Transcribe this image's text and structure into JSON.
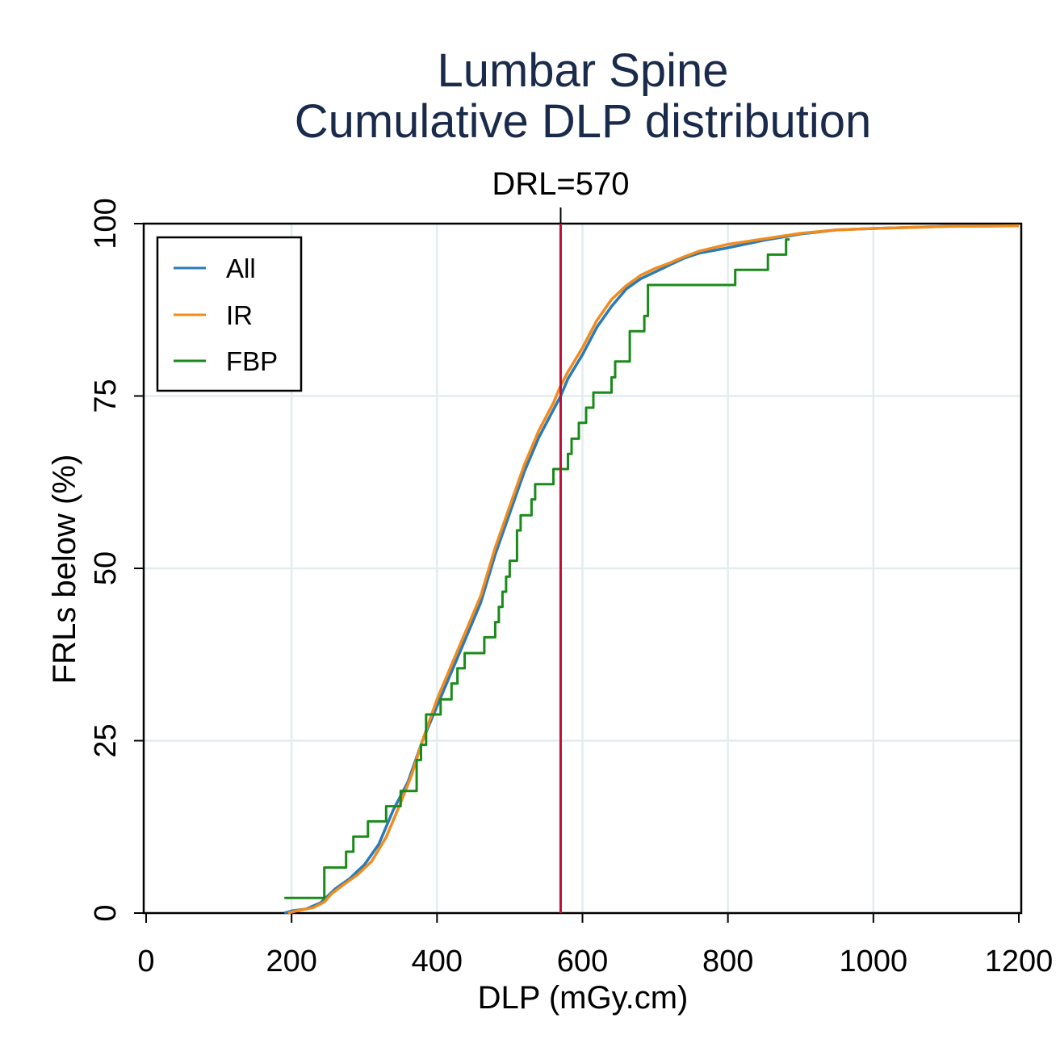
{
  "chart_data": {
    "type": "line",
    "title": [
      "Lumbar Spine",
      "Cumulative DLP distribution"
    ],
    "xlabel": "DLP (mGy.cm)",
    "ylabel": "FRLs below (%)",
    "xlim": [
      0,
      1200
    ],
    "ylim": [
      0,
      100
    ],
    "xticks": [
      "0",
      "200",
      "400",
      "600",
      "800",
      "1000",
      "1200"
    ],
    "yticks": [
      "0",
      "25",
      "50",
      "75",
      "100"
    ],
    "grid": true,
    "legend_position": "top-left",
    "reference_line": {
      "label": "DRL=570",
      "x": 570,
      "color": "#c0103a"
    },
    "series": [
      {
        "name": "All",
        "color": "#2a7ab8",
        "step": false,
        "points": [
          [
            190,
            0
          ],
          [
            200,
            0.3
          ],
          [
            220,
            0.6
          ],
          [
            240,
            1.5
          ],
          [
            250,
            2.5
          ],
          [
            260,
            3.5
          ],
          [
            280,
            5
          ],
          [
            300,
            7
          ],
          [
            320,
            10
          ],
          [
            340,
            15
          ],
          [
            360,
            19
          ],
          [
            370,
            22
          ],
          [
            380,
            25
          ],
          [
            400,
            30
          ],
          [
            420,
            35
          ],
          [
            440,
            40
          ],
          [
            460,
            45
          ],
          [
            480,
            52
          ],
          [
            500,
            58
          ],
          [
            520,
            64
          ],
          [
            540,
            69
          ],
          [
            560,
            73
          ],
          [
            570,
            75
          ],
          [
            580,
            77.5
          ],
          [
            600,
            81
          ],
          [
            620,
            85
          ],
          [
            640,
            88
          ],
          [
            660,
            90.5
          ],
          [
            680,
            92
          ],
          [
            700,
            93
          ],
          [
            720,
            94
          ],
          [
            740,
            95
          ],
          [
            760,
            95.7
          ],
          [
            800,
            96.5
          ],
          [
            850,
            97.6
          ],
          [
            900,
            98.5
          ],
          [
            950,
            99.1
          ],
          [
            1000,
            99.3
          ],
          [
            1100,
            99.6
          ],
          [
            1200,
            99.7
          ]
        ]
      },
      {
        "name": "IR",
        "color": "#f08c1e",
        "step": false,
        "points": [
          [
            195,
            0
          ],
          [
            210,
            0.4
          ],
          [
            230,
            0.8
          ],
          [
            245,
            1.6
          ],
          [
            255,
            2.8
          ],
          [
            270,
            4
          ],
          [
            290,
            5.5
          ],
          [
            310,
            7.5
          ],
          [
            330,
            11
          ],
          [
            350,
            16
          ],
          [
            365,
            20
          ],
          [
            380,
            25
          ],
          [
            400,
            31
          ],
          [
            420,
            36
          ],
          [
            440,
            41
          ],
          [
            460,
            46
          ],
          [
            480,
            53
          ],
          [
            500,
            59
          ],
          [
            520,
            65
          ],
          [
            540,
            70
          ],
          [
            560,
            74
          ],
          [
            570,
            76.5
          ],
          [
            580,
            78.5
          ],
          [
            600,
            82
          ],
          [
            620,
            86
          ],
          [
            640,
            89
          ],
          [
            660,
            91
          ],
          [
            680,
            92.5
          ],
          [
            700,
            93.5
          ],
          [
            720,
            94.3
          ],
          [
            740,
            95.2
          ],
          [
            760,
            96
          ],
          [
            800,
            97
          ],
          [
            850,
            97.8
          ],
          [
            900,
            98.6
          ],
          [
            950,
            99.1
          ],
          [
            1000,
            99.3
          ],
          [
            1100,
            99.6
          ],
          [
            1200,
            99.7
          ]
        ]
      },
      {
        "name": "FBP",
        "color": "#1a8a1a",
        "step": true,
        "points": [
          [
            190,
            2.2
          ],
          [
            245,
            2.2
          ],
          [
            245,
            6.6
          ],
          [
            275,
            6.6
          ],
          [
            275,
            8.9
          ],
          [
            285,
            8.9
          ],
          [
            285,
            11.1
          ],
          [
            305,
            11.1
          ],
          [
            305,
            13.3
          ],
          [
            330,
            13.3
          ],
          [
            330,
            15.5
          ],
          [
            350,
            15.5
          ],
          [
            350,
            17.7
          ],
          [
            372,
            17.7
          ],
          [
            372,
            22.2
          ],
          [
            378,
            22.2
          ],
          [
            378,
            24.4
          ],
          [
            385,
            24.4
          ],
          [
            385,
            28.8
          ],
          [
            405,
            28.8
          ],
          [
            405,
            31
          ],
          [
            420,
            31
          ],
          [
            420,
            33.3
          ],
          [
            428,
            33.3
          ],
          [
            428,
            35.5
          ],
          [
            438,
            35.5
          ],
          [
            438,
            37.7
          ],
          [
            465,
            37.7
          ],
          [
            465,
            40
          ],
          [
            480,
            40
          ],
          [
            480,
            42.2
          ],
          [
            485,
            42.2
          ],
          [
            485,
            44.4
          ],
          [
            490,
            44.4
          ],
          [
            490,
            46.6
          ],
          [
            495,
            46.6
          ],
          [
            495,
            48.8
          ],
          [
            500,
            48.8
          ],
          [
            500,
            51.1
          ],
          [
            510,
            51.1
          ],
          [
            510,
            55.5
          ],
          [
            515,
            55.5
          ],
          [
            515,
            57.7
          ],
          [
            530,
            57.7
          ],
          [
            530,
            60
          ],
          [
            535,
            60
          ],
          [
            535,
            62.2
          ],
          [
            560,
            62.2
          ],
          [
            560,
            64.4
          ],
          [
            580,
            64.4
          ],
          [
            580,
            66.6
          ],
          [
            585,
            66.6
          ],
          [
            585,
            68.8
          ],
          [
            595,
            68.8
          ],
          [
            595,
            71.1
          ],
          [
            605,
            71.1
          ],
          [
            605,
            73.3
          ],
          [
            615,
            73.3
          ],
          [
            615,
            75.5
          ],
          [
            640,
            75.5
          ],
          [
            640,
            77.7
          ],
          [
            645,
            77.7
          ],
          [
            645,
            80
          ],
          [
            665,
            80
          ],
          [
            665,
            84.4
          ],
          [
            685,
            84.4
          ],
          [
            685,
            86.6
          ],
          [
            690,
            86.6
          ],
          [
            690,
            91.1
          ],
          [
            810,
            91.1
          ],
          [
            810,
            93.3
          ],
          [
            855,
            93.3
          ],
          [
            855,
            95.5
          ],
          [
            880,
            95.5
          ],
          [
            880,
            97.7
          ],
          [
            885,
            97.7
          ]
        ]
      }
    ]
  }
}
